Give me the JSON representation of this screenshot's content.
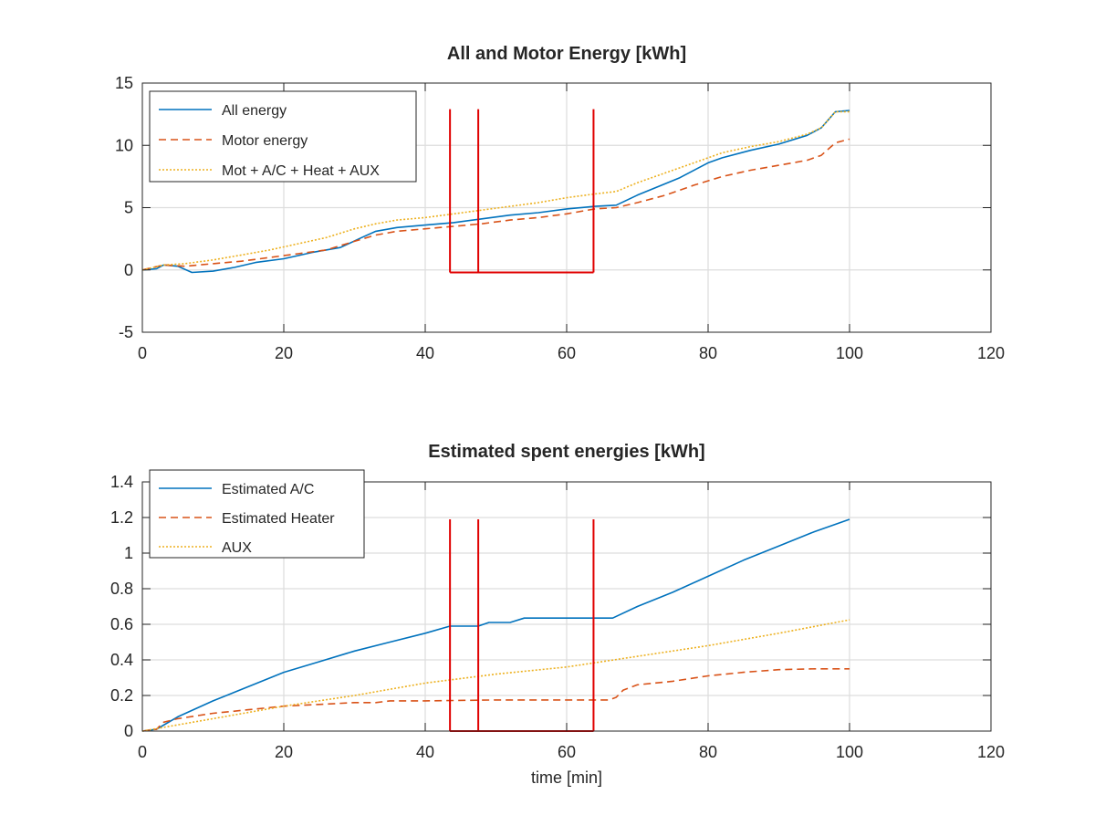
{
  "colors": {
    "blue": "#0072BD",
    "orange": "#D95319",
    "yellow": "#EDB120",
    "red": "#E00000",
    "grid": "#DDDDDD",
    "axis": "#262626"
  },
  "chart_data": [
    {
      "type": "line",
      "title": "All and Motor Energy [kWh]",
      "xlabel": "",
      "ylabel": "",
      "xlim": [
        0,
        120
      ],
      "ylim": [
        -5,
        15
      ],
      "xticks": [
        0,
        20,
        40,
        60,
        80,
        100,
        120
      ],
      "yticks": [
        -5,
        0,
        5,
        10,
        15
      ],
      "xtick_labels": [
        "0",
        "20",
        "40",
        "60",
        "80",
        "100",
        "120"
      ],
      "ytick_labels": [
        "-5",
        "0",
        "5",
        "10",
        "15"
      ],
      "grid": true,
      "legend_position": "top-left",
      "series": [
        {
          "name": "All energy",
          "color": "blue",
          "style": "solid",
          "x": [
            0,
            2,
            3,
            5,
            7,
            10,
            13,
            16,
            20,
            24,
            28,
            31,
            33,
            36,
            40,
            44,
            48,
            52,
            56,
            60,
            64,
            67,
            70,
            73,
            76,
            80,
            82,
            86,
            90,
            94,
            96,
            98,
            100
          ],
          "y": [
            0,
            0.1,
            0.4,
            0.3,
            -0.2,
            -0.1,
            0.2,
            0.6,
            0.9,
            1.4,
            1.8,
            2.6,
            3.1,
            3.4,
            3.6,
            3.8,
            4.1,
            4.4,
            4.6,
            4.9,
            5.1,
            5.2,
            6.0,
            6.7,
            7.4,
            8.6,
            9.0,
            9.6,
            10.1,
            10.8,
            11.4,
            12.7,
            12.8
          ]
        },
        {
          "name": "Motor energy",
          "color": "orange",
          "style": "dashed",
          "x": [
            0,
            3,
            6,
            10,
            14,
            18,
            22,
            26,
            30,
            33,
            36,
            40,
            44,
            48,
            52,
            56,
            60,
            64,
            67,
            70,
            74,
            78,
            82,
            86,
            90,
            94,
            96,
            98,
            100
          ],
          "y": [
            0,
            0.4,
            0.3,
            0.5,
            0.7,
            1.0,
            1.3,
            1.6,
            2.3,
            2.8,
            3.1,
            3.3,
            3.5,
            3.7,
            4.0,
            4.2,
            4.5,
            4.9,
            5.0,
            5.4,
            6.0,
            6.8,
            7.5,
            8.0,
            8.4,
            8.8,
            9.2,
            10.2,
            10.5
          ]
        },
        {
          "name": "Mot + A/C + Heat + AUX",
          "color": "yellow",
          "style": "dashdot",
          "x": [
            0,
            3,
            6,
            10,
            14,
            18,
            22,
            26,
            30,
            33,
            36,
            40,
            44,
            48,
            52,
            56,
            60,
            64,
            67,
            70,
            74,
            78,
            82,
            86,
            90,
            94,
            96,
            98,
            100
          ],
          "y": [
            0,
            0.4,
            0.5,
            0.8,
            1.2,
            1.6,
            2.1,
            2.6,
            3.3,
            3.7,
            4.0,
            4.2,
            4.5,
            4.8,
            5.1,
            5.4,
            5.8,
            6.1,
            6.3,
            7.0,
            7.8,
            8.6,
            9.4,
            9.9,
            10.3,
            10.9,
            11.4,
            12.7,
            12.7
          ]
        }
      ],
      "markers": {
        "name": "event markers",
        "color": "red",
        "x": [
          43.5,
          47.5,
          63.8
        ],
        "y_top": 12.9,
        "y_bottom": -0.2
      }
    },
    {
      "type": "line",
      "title": "Estimated spent energies [kWh]",
      "xlabel": "time [min]",
      "ylabel": "",
      "xlim": [
        0,
        120
      ],
      "ylim": [
        0,
        1.4
      ],
      "xticks": [
        0,
        20,
        40,
        60,
        80,
        100,
        120
      ],
      "yticks": [
        0,
        0.2,
        0.4,
        0.6,
        0.8,
        1,
        1.2,
        1.4
      ],
      "xtick_labels": [
        "0",
        "20",
        "40",
        "60",
        "80",
        "100",
        "120"
      ],
      "ytick_labels": [
        "0",
        "0.2",
        "0.4",
        "0.6",
        "0.8",
        "1",
        "1.2",
        "1.4"
      ],
      "grid": true,
      "legend_position": "top-left",
      "series": [
        {
          "name": "Estimated A/C",
          "color": "blue",
          "style": "solid",
          "x": [
            0,
            2,
            5,
            10,
            15,
            20,
            25,
            30,
            35,
            40,
            43.5,
            47.5,
            49,
            52,
            54,
            58,
            62,
            66.5,
            70,
            75,
            80,
            85,
            90,
            95,
            100
          ],
          "y": [
            0,
            0.01,
            0.08,
            0.17,
            0.25,
            0.33,
            0.39,
            0.45,
            0.5,
            0.55,
            0.59,
            0.59,
            0.61,
            0.61,
            0.635,
            0.635,
            0.635,
            0.635,
            0.7,
            0.78,
            0.87,
            0.96,
            1.04,
            1.12,
            1.19
          ]
        },
        {
          "name": "Estimated Heater",
          "color": "orange",
          "style": "dashed",
          "x": [
            0,
            2,
            3,
            5,
            10,
            15,
            20,
            25,
            30,
            33,
            35,
            40,
            50,
            60,
            66,
            67,
            68,
            70,
            75,
            80,
            85,
            90,
            95,
            100
          ],
          "y": [
            0,
            0.01,
            0.05,
            0.07,
            0.1,
            0.12,
            0.14,
            0.15,
            0.16,
            0.16,
            0.17,
            0.17,
            0.175,
            0.175,
            0.175,
            0.19,
            0.23,
            0.26,
            0.28,
            0.31,
            0.33,
            0.345,
            0.35,
            0.35
          ]
        },
        {
          "name": "AUX",
          "color": "yellow",
          "style": "dashdot",
          "x": [
            0,
            10,
            20,
            30,
            40,
            50,
            60,
            70,
            80,
            90,
            100
          ],
          "y": [
            0,
            0.07,
            0.14,
            0.2,
            0.27,
            0.32,
            0.36,
            0.42,
            0.48,
            0.55,
            0.625
          ]
        }
      ],
      "markers": {
        "name": "event markers",
        "color": "red",
        "x": [
          43.5,
          47.5,
          63.8
        ],
        "y_top": 1.19,
        "y_bottom": 0
      }
    }
  ]
}
